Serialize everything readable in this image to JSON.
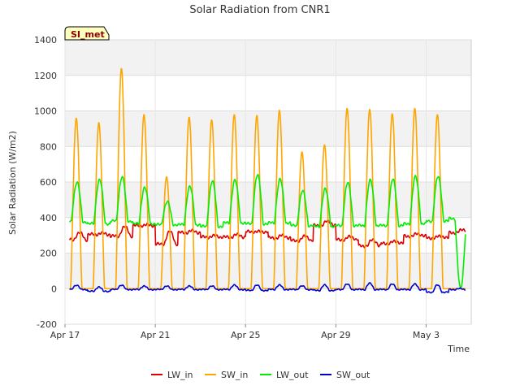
{
  "chart_data": {
    "type": "line",
    "title": "Solar Radiation from CNR1",
    "xlabel": "Time",
    "ylabel": "Solar Radiation (W/m2)",
    "badge": "SI_met",
    "ylim": [
      -200,
      1400
    ],
    "yticks": [
      -200,
      0,
      200,
      400,
      600,
      800,
      1000,
      1200,
      1400
    ],
    "xlim": [
      "2024-04-17",
      "2024-05-05"
    ],
    "xticks": [
      {
        "date": "2024-04-17",
        "label": "Apr 17"
      },
      {
        "date": "2024-04-21",
        "label": "Apr 21"
      },
      {
        "date": "2024-04-25",
        "label": "Apr 25"
      },
      {
        "date": "2024-04-29",
        "label": "Apr 29"
      },
      {
        "date": "2024-05-03",
        "label": "May 3"
      }
    ],
    "grid": true,
    "legend_position": "bottom",
    "days": [
      "2024-04-17",
      "2024-04-18",
      "2024-04-19",
      "2024-04-20",
      "2024-04-21",
      "2024-04-22",
      "2024-04-23",
      "2024-04-24",
      "2024-04-25",
      "2024-04-26",
      "2024-04-27",
      "2024-04-28",
      "2024-04-29",
      "2024-04-30",
      "2024-05-01",
      "2024-05-02",
      "2024-05-03",
      "2024-05-04"
    ],
    "series": [
      {
        "name": "LW_in",
        "color": "#dd0000",
        "daily_mean": [
          275,
          305,
          295,
          355,
          250,
          315,
          290,
          290,
          320,
          285,
          270,
          355,
          275,
          240,
          255,
          295,
          285,
          315
        ],
        "daily_peak": [
          330,
          315,
          370,
          360,
          350,
          330,
          300,
          310,
          320,
          305,
          305,
          390,
          300,
          290,
          270,
          315,
          300,
          340
        ]
      },
      {
        "name": "SW_in",
        "color": "#ffa500",
        "daily_peak": [
          960,
          935,
          1240,
          980,
          630,
          965,
          950,
          980,
          975,
          1005,
          770,
          810,
          1015,
          1010,
          985,
          1015,
          980,
          0
        ]
      },
      {
        "name": "LW_out",
        "color": "#00ee00",
        "daily_min": [
          375,
          365,
          380,
          365,
          360,
          360,
          350,
          370,
          365,
          370,
          355,
          350,
          355,
          355,
          355,
          365,
          380,
          395
        ],
        "daily_peak": [
          600,
          615,
          630,
          570,
          490,
          575,
          605,
          610,
          640,
          615,
          550,
          560,
          595,
          610,
          615,
          630,
          630,
          0
        ]
      },
      {
        "name": "SW_out",
        "color": "#0000cc",
        "daily_min": [
          -5,
          -15,
          -5,
          -5,
          -5,
          -5,
          -5,
          -5,
          -10,
          -5,
          -5,
          -10,
          -5,
          -5,
          -5,
          -5,
          -20,
          -5
        ],
        "daily_peak": [
          20,
          10,
          20,
          15,
          15,
          15,
          15,
          20,
          20,
          20,
          15,
          20,
          25,
          30,
          25,
          25,
          20,
          0
        ]
      }
    ]
  }
}
